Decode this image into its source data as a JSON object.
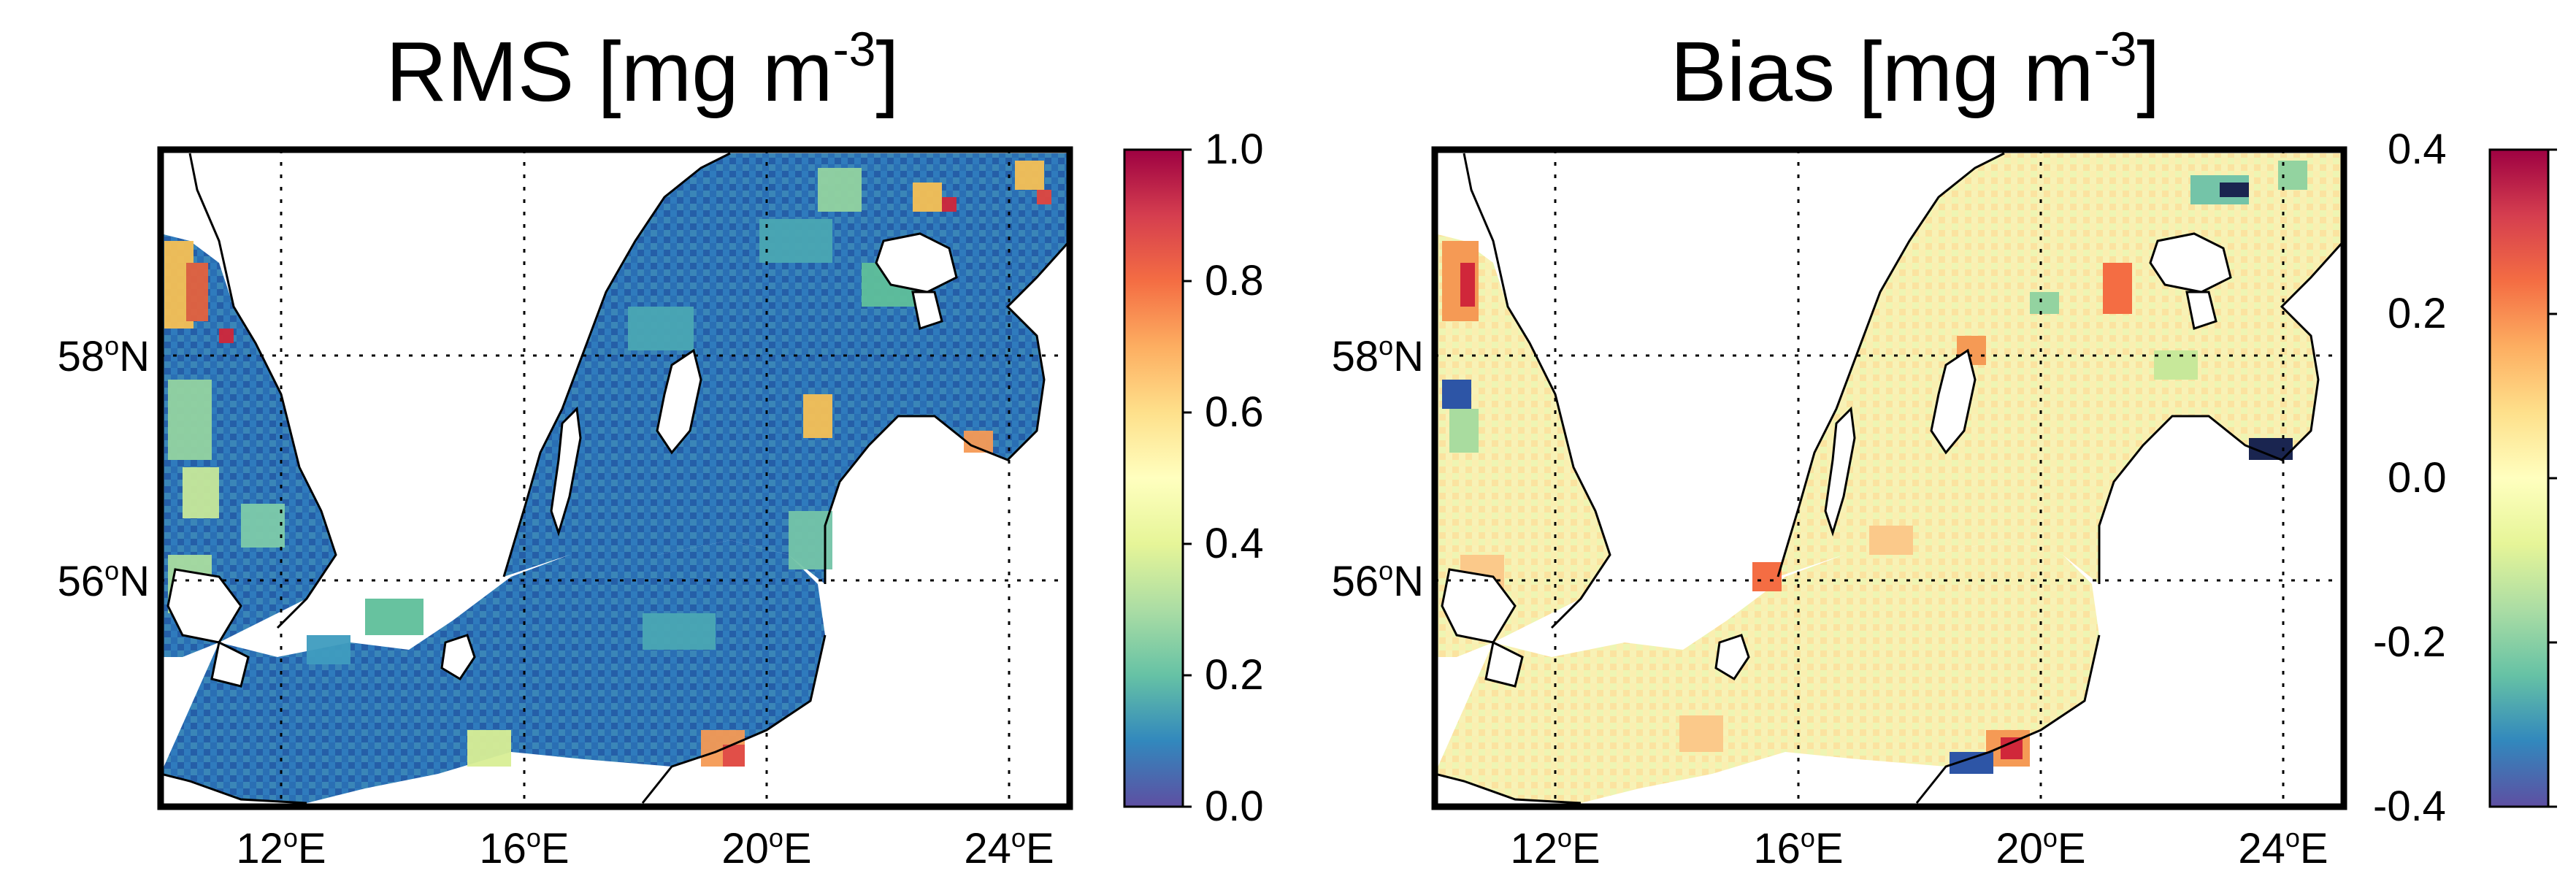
{
  "panels": [
    {
      "id": "rms",
      "title": "RMS [mg m",
      "title_sup": "-3",
      "title_close": "]",
      "lat_labels": [
        {
          "deg": "58",
          "hemi": "N"
        },
        {
          "deg": "56",
          "hemi": "N"
        }
      ],
      "lon_labels": [
        {
          "deg": "12",
          "hemi": "E"
        },
        {
          "deg": "16",
          "hemi": "E"
        },
        {
          "deg": "20",
          "hemi": "E"
        },
        {
          "deg": "24",
          "hemi": "E"
        }
      ],
      "colorbar": {
        "range": [
          0.0,
          1.0
        ],
        "ticks": [
          "1.0",
          "0.8",
          "0.6",
          "0.4",
          "0.2",
          "0.0"
        ],
        "colormap": "Spectral_r"
      },
      "field_description_colors": {
        "dominant": "#2a6fb4",
        "secondary": "#5fbf9a",
        "high": "#d0273a"
      }
    },
    {
      "id": "bias",
      "title": "Bias [mg m",
      "title_sup": "-3",
      "title_close": "]",
      "lat_labels": [
        {
          "deg": "58",
          "hemi": "N"
        },
        {
          "deg": "56",
          "hemi": "N"
        }
      ],
      "lon_labels": [
        {
          "deg": "12",
          "hemi": "E"
        },
        {
          "deg": "16",
          "hemi": "E"
        },
        {
          "deg": "20",
          "hemi": "E"
        },
        {
          "deg": "24",
          "hemi": "E"
        }
      ],
      "colorbar": {
        "range": [
          -0.4,
          0.4
        ],
        "ticks": [
          "0.4",
          "0.2",
          "0.0",
          "-0.2",
          "-0.4"
        ],
        "colormap": "Spectral_r"
      },
      "field_description_colors": {
        "dominant": "#f6f0b0",
        "secondary": "#fbc98a",
        "low": "#2d55a6"
      }
    }
  ]
}
